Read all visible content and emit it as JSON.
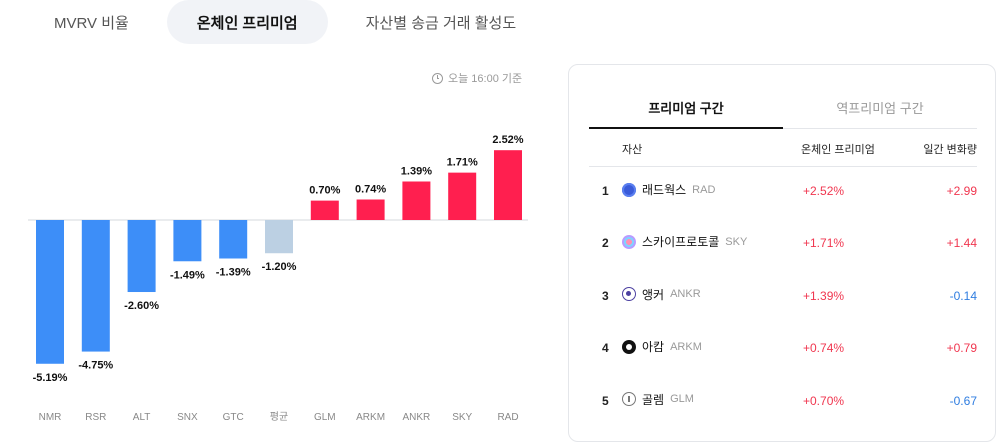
{
  "tabs": [
    {
      "label": "MVRV 비율",
      "active": false
    },
    {
      "label": "온체인 프리미엄",
      "active": true
    },
    {
      "label": "자산별 송금 거래 활성도",
      "active": false
    }
  ],
  "timestamp": "오늘 16:00 기준",
  "chart_data": {
    "type": "bar",
    "categories": [
      "NMR",
      "RSR",
      "ALT",
      "SNX",
      "GTC",
      "평균",
      "GLM",
      "ARKM",
      "ANKR",
      "SKY",
      "RAD"
    ],
    "values": [
      -5.19,
      -4.75,
      -2.6,
      -1.49,
      -1.39,
      -1.2,
      0.7,
      0.74,
      1.39,
      1.71,
      2.52
    ],
    "value_labels": [
      "-5.19%",
      "-4.75%",
      "-2.60%",
      "-1.49%",
      "-1.39%",
      "-1.20%",
      "0.70%",
      "0.74%",
      "1.39%",
      "1.71%",
      "2.52%"
    ],
    "colors": {
      "negative": "#3d8ef8",
      "average": "#bcd0e3",
      "positive": "#ff1f4f"
    },
    "title": "",
    "xlabel": "",
    "ylabel": "",
    "grid": false
  },
  "panel": {
    "tabs": [
      {
        "label": "프리미엄 구간",
        "active": true
      },
      {
        "label": "역프리미엄 구간",
        "active": false
      }
    ],
    "headers": {
      "asset": "자산",
      "premium": "온체인 프리미엄",
      "change": "일간 변화량"
    },
    "rows": [
      {
        "rank": "1",
        "name": "래드웍스",
        "symbol": "RAD",
        "icon": "radworks-icon",
        "premium": "+2.52%",
        "change": "+2.99",
        "direction": "up"
      },
      {
        "rank": "2",
        "name": "스카이프로토콜",
        "symbol": "SKY",
        "icon": "skyprotocol-icon",
        "premium": "+1.71%",
        "change": "+1.44",
        "direction": "up"
      },
      {
        "rank": "3",
        "name": "앵커",
        "symbol": "ANKR",
        "icon": "ankr-icon",
        "premium": "+1.39%",
        "change": "-0.14",
        "direction": "down"
      },
      {
        "rank": "4",
        "name": "아캄",
        "symbol": "ARKM",
        "icon": "arkham-icon",
        "premium": "+0.74%",
        "change": "+0.79",
        "direction": "up"
      },
      {
        "rank": "5",
        "name": "골렘",
        "symbol": "GLM",
        "icon": "golem-icon",
        "premium": "+0.70%",
        "change": "-0.67",
        "direction": "down"
      }
    ]
  }
}
